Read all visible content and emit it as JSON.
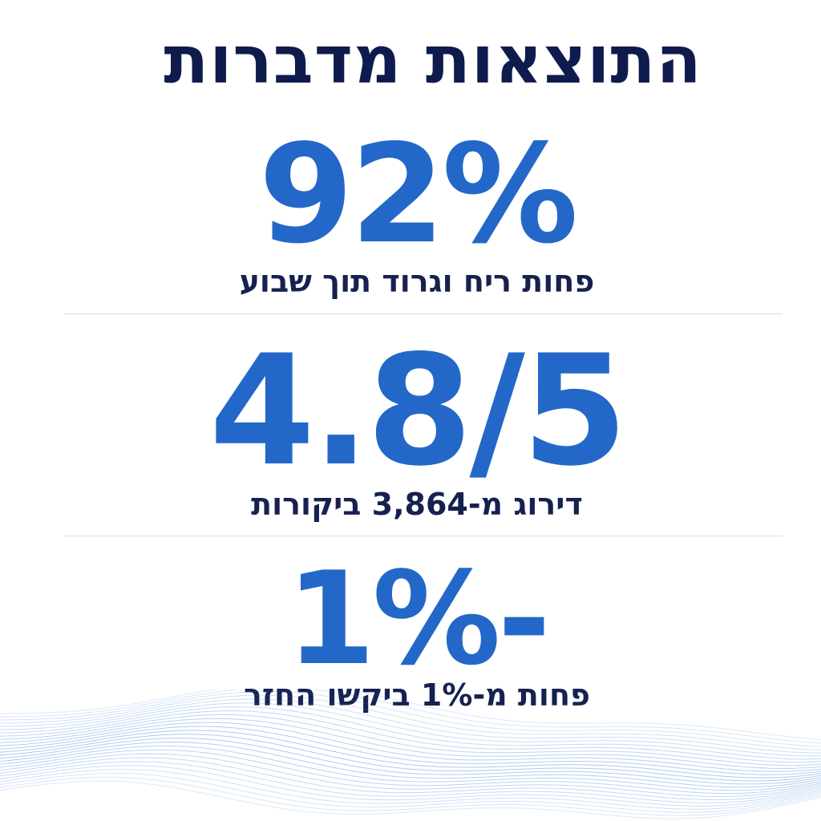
{
  "header": {
    "title": "התוצאות מדברות"
  },
  "stats": [
    {
      "value": "92%",
      "caption": "פחות ריח וגרוד תוך שבוע"
    },
    {
      "value": "4.8/5",
      "caption": "דירוג מ-3,864 ביקורות"
    },
    {
      "value": "1%-",
      "caption": "פחות מ-1% ביקשו החזר"
    }
  ],
  "colors": {
    "title": "#0f1b4d",
    "accent": "#2368c8",
    "caption": "#16214f",
    "divider": "#d7dbe3",
    "waves": "#3b7fd9"
  }
}
